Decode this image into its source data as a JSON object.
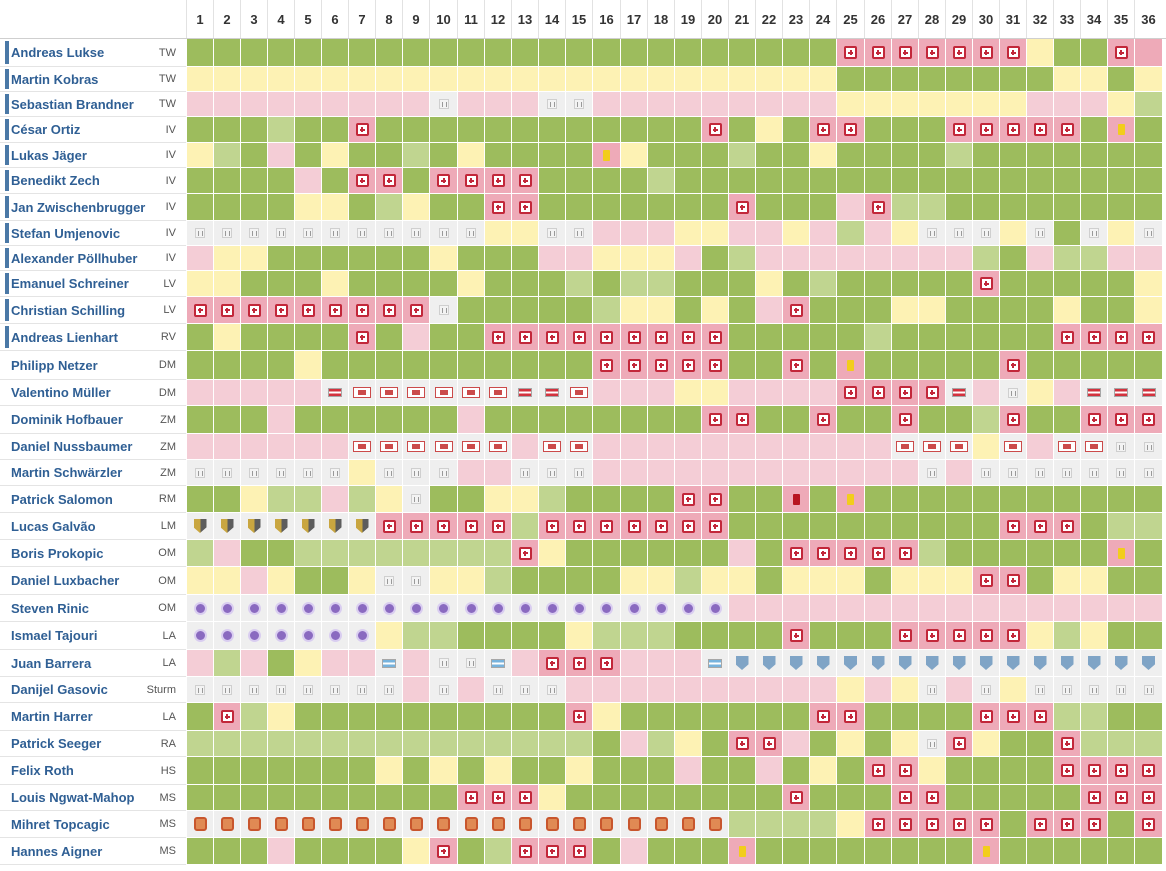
{
  "matchdays": [
    "1",
    "2",
    "3",
    "4",
    "5",
    "6",
    "7",
    "8",
    "9",
    "10",
    "11",
    "12",
    "13",
    "14",
    "15",
    "16",
    "17",
    "18",
    "19",
    "20",
    "21",
    "22",
    "23",
    "24",
    "25",
    "26",
    "27",
    "28",
    "29",
    "30",
    "31",
    "32",
    "33",
    "34",
    "35",
    "36"
  ],
  "legend": {
    "G": "#9dbc5d",
    "L": "#c0d590",
    "Y": "#fdf2b4",
    "P": "#f4cdd6",
    "R": "#eeaab8",
    "B": "#efefef"
  },
  "icons": {
    "s": "substitution-icon",
    "o": "absent-icon",
    "y": "yellow-card-icon",
    "r": "red-card-icon",
    "a": "austria-national-team-icon",
    "n": "argentina-national-team-icon",
    "i": "club-violet-crest-icon",
    "t": "club-sturm-crest-icon",
    "g": "club-grey-crest-icon",
    "c": "club-orange-crest-icon",
    "b": "loan-club-badge-icon"
  },
  "players": [
    {
      "name": "Andreas Lukse",
      "pos": "TW",
      "bar": true,
      "cells": "G G G G G G G G G G G G G G G G G G G G G G G G Rs Rs Rs Rs Rs Rs Rs Y G G Rs R"
    },
    {
      "name": "Martin Kobras",
      "pos": "TW",
      "bar": true,
      "cells": "Y Y Y Y Y Y Y Y Y Y Y Y Y Y Y Y Y Y Y Y Y Y Y Y G G G G G G G G Y Y G Y"
    },
    {
      "name": "Sebastian Brandner",
      "pos": "TW",
      "bar": true,
      "cells": "P P P P P P P P P Bo P P P Bo Bo P P P P P P P P P Y Y Y Y Y Y Y P P P Y L"
    },
    {
      "name": "César Ortiz",
      "pos": "IV",
      "bar": true,
      "cells": "G G G L G G Rs G G G G G G G G G G G G Rs G Y G Rs Rs G G G Rs Rs Rs Rs Rs G Ry G"
    },
    {
      "name": "Lukas Jäger",
      "pos": "IV",
      "bar": true,
      "cells": "Y L G P G Y G G L G Y G G G G Ry Y G G G L G G Y G G G G L G G G G G G G"
    },
    {
      "name": "Benedikt Zech",
      "pos": "IV",
      "bar": true,
      "cells": "G G G G P G Rs Rs G Rs Rs Rs Rs G G G G L G G G G G G G G G G G G G G G G G G"
    },
    {
      "name": "Jan Zwischenbrugger",
      "pos": "IV",
      "bar": true,
      "cells": "G G G G Y Y G L Y G G Rs Rs G G G G G G G Rs G G G P Rs L L G G G G G G G G"
    },
    {
      "name": "Stefan Umjenovic",
      "pos": "IV",
      "bar": true,
      "cells": "Bo Bo Bo Bo Bo Bo Bo Bo Bo Bo Bo Y Y Bo Bo P P P Y Y P P Y P L P Y Bo Bo Bo Y Bo G Bo Y Bo"
    },
    {
      "name": "Alexander Pöllhuber",
      "pos": "IV",
      "bar": true,
      "cells": "P Y Y G G G G G G Y G G G P P Y Y Y P G L P P P P P P P P L G P L L P P"
    },
    {
      "name": "Emanuel Schreiner",
      "pos": "LV",
      "bar": true,
      "cells": "Y Y G G G Y G G G G Y G G G L G L L G G G Y G L G G G G G Rs G G G G G Y"
    },
    {
      "name": "Christian Schilling",
      "pos": "LV",
      "bar": true,
      "cells": "Rs Rs Rs Rs Rs Rs Rs Rs Rs Bo G G G G G L Y Y G Y G P Rs G G G Y Y G G G G Y G G Y"
    },
    {
      "name": "Andreas Lienhart",
      "pos": "RV",
      "bar": true,
      "cells": "G Y G G G G Rs G P G G Rs Rs Rs Rs Rs Rs Rs Rs Rs G G G G G L G G G G G G Rs Rs Rs Rs"
    },
    {
      "name": "Philipp Netzer",
      "pos": "DM",
      "bar": false,
      "cells": "G G G G Y G G G G G G G G G G Rs Rs Rs Rs Rs G G Rs G Ry G G G G G Rs G G G G G"
    },
    {
      "name": "Valentino Müller",
      "pos": "DM",
      "bar": false,
      "cells": "P P P P P Ba Bb Bb Bb Bb Bb Bb Ba Ba Bb P P P Y Y P P P P Rs Rs Rs Rs Ba P Bo Y P Ba Ba Ba"
    },
    {
      "name": "Dominik Hofbauer",
      "pos": "ZM",
      "bar": false,
      "cells": "G G G P G G G G G G P G G G G G G G G Rs Rs G G Rs G G Rs G G L Rs G G Rs Rs Rs"
    },
    {
      "name": "Daniel Nussbaumer",
      "pos": "ZM",
      "bar": false,
      "cells": "P P P P P P Bb Bb Bb Bb Bb Bb P Bb Bb P P P P P P P P P P P Bb Bb Bb Y Bb P Bb Bb Bo Bo"
    },
    {
      "name": "Martin Schwärzler",
      "pos": "ZM",
      "bar": false,
      "cells": "Bo Bo Bo Bo Bo Bo Y Bo Bo Bo P P Bo Bo Bo P P P P P P P P P P P P Bo P Bo Bo Bo Bo Bo Bo Bo"
    },
    {
      "name": "Patrick Salomon",
      "pos": "RM",
      "bar": false,
      "cells": "G G Y L L P L Y Bo G G Y Y L G G G G Rs Rs G G Rr G Ry G G G G G G G G G G G"
    },
    {
      "name": "Lucas Galvão",
      "pos": "LM",
      "bar": false,
      "cells": "Bt Bt Bt Bt Bt Bt Bt Rs Rs Rs Rs Rs L Rs Rs Rs Rs Rs Rs Rs G G G G G G G G G G Rs Rs Rs G L L"
    },
    {
      "name": "Boris Prokopic",
      "pos": "OM",
      "bar": false,
      "cells": "L P G G L L L L L L L L Rs Y G G G G G G P G Rs Rs Rs Rs Rs L G G G G G G Ry G"
    },
    {
      "name": "Daniel Luxbacher",
      "pos": "OM",
      "bar": false,
      "cells": "Y Y P Y G G Y Bo Bo Y Y L G G G G Y Y L Y Y G Y Y Y G Y Y Y Rs Rs G Y Y G G"
    },
    {
      "name": "Steven Rinic",
      "pos": "OM",
      "bar": false,
      "cells": "Bi Bi Bi Bi Bi Bi Bi Bi Bi Bi Bi Bi Bi Bi Bi Bi Bi Bi Bi Bi P P P P P P P P P P P P P P P P"
    },
    {
      "name": "Ismael Tajouri",
      "pos": "LA",
      "bar": false,
      "cells": "Bi Bi Bi Bi Bi Bi Bi Y L L G G G G Y L L L G G G G Rs G G G Rs Rs Rs Rs Rs Y L Y G G"
    },
    {
      "name": "Juan Barrera",
      "pos": "LA",
      "bar": false,
      "cells": "P L P G Y P P Bn P Bo Bo Bn P Rs Rs Rs P P P Bn Bg Bg Bg Bg Bg Bg Bg Bg Bg Bg Bg Bg Bg Bg Bg Bg"
    },
    {
      "name": "Danijel Gasovic",
      "pos": "Sturm",
      "bar": false,
      "cells": "Bo Bo Bo Bo Bo Bo Bo Bo P Bo P Bo Bo Bo P P P P P P P P P P Y P Y Bo P Bo Y Bo Bo Bo Bo Bo"
    },
    {
      "name": "Martin Harrer",
      "pos": "LA",
      "bar": false,
      "cells": "G Rs L Y G G G G G G G G G G Rs Y G G G G G G G Rs Rs G G G G Rs Rs Rs L L G G"
    },
    {
      "name": "Patrick Seeger",
      "pos": "RA",
      "bar": false,
      "cells": "L L L L L L L L L L L L L L L G P L Y G Rs Rs P G Y G Y Bo Rs Y G G Rs L L L"
    },
    {
      "name": "Felix Roth",
      "pos": "HS",
      "bar": false,
      "cells": "G G G G G G G Y G Y G Y G G Y G G G P G G P G Y G Rs Rs Y G G G G Rs Rs Rs Rs"
    },
    {
      "name": "Louis Ngwat-Mahop",
      "pos": "MS",
      "bar": false,
      "cells": "G G G G G G G G G G Rs Rs Rs Y G G G G G G G G Rs G G G Rs Rs G G G G G Rs Rs Rs"
    },
    {
      "name": "Mihret Topcagic",
      "pos": "MS",
      "bar": false,
      "cells": "Bc Bc Bc Bc Bc Bc Bc Bc Bc Bc Bc Bc Bc Bc Bc Bc Bc Bc Bc Bc L L L L Y Rs Rs Rs Rs Rs G Rs Rs Rs G Rs"
    },
    {
      "name": "Hannes Aigner",
      "pos": "MS",
      "bar": false,
      "cells": "G G G P G G G G Y Rs G L Rs Rs Rs G P G G G Ry G G G G G G G G Ry G G G G G G"
    }
  ]
}
